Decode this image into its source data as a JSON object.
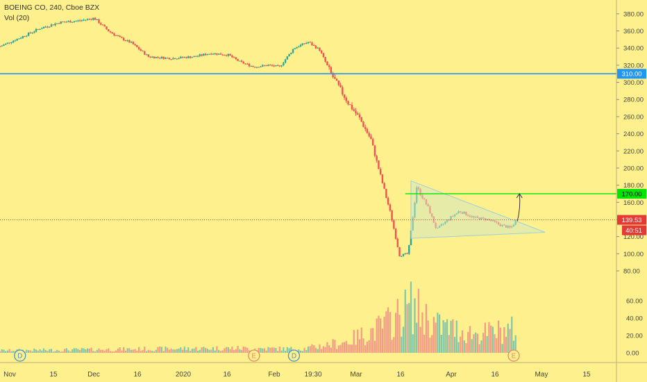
{
  "legend": {
    "symbol_line": "BOEING CO, 240, Cboe BZX",
    "volume_label": "Vol (20)"
  },
  "colors": {
    "background": "#fdf08d",
    "up_candle": "#26a69a",
    "down_candle": "#ef5350",
    "up_volume": "#7fc7a8",
    "down_volume": "#f29b86",
    "support_line": "#2196f3",
    "resistance_line": "#00e600",
    "last_price_line": "#e53935",
    "triangle_fill": "#d6e8bf",
    "triangle_edge": "#9fcfd8",
    "event_marker": "#e8866b",
    "dividend_marker": "#4a90c8",
    "axis_text": "#444444"
  },
  "chart_data": {
    "type": "candlestick",
    "price_axis": {
      "ticks": [
        "380.00",
        "360.00",
        "340.00",
        "320.00",
        "300.00",
        "280.00",
        "260.00",
        "240.00",
        "220.00",
        "200.00",
        "180.00",
        "160.00",
        "140.00",
        "120.00",
        "100.00",
        "80.00"
      ],
      "range": [
        80,
        388
      ]
    },
    "volume_axis": {
      "ticks": [
        "60.00",
        "40.00",
        "20.00",
        "0.00"
      ],
      "range": [
        0,
        80
      ]
    },
    "time_axis": {
      "ticks": [
        "Nov",
        "15",
        "Dec",
        "16",
        "2020",
        "16",
        "Feb",
        "19:30",
        "Mar",
        "16",
        "Apr",
        "16",
        "May",
        "15"
      ],
      "range": [
        "2019-11-01",
        "2020-06-04"
      ]
    },
    "horizontal_lines": [
      {
        "label": "310.00",
        "value": 310
      },
      {
        "label": "170.00",
        "value": 170
      }
    ],
    "last_price": {
      "label": "139.53",
      "value": 139.53
    },
    "countdown": "40:51",
    "triangle_pattern": {
      "points": [
        [
          "2020-03-24",
          185
        ],
        [
          "2020-03-24",
          118
        ],
        [
          "2020-05-10",
          125
        ]
      ]
    },
    "target_arrow": {
      "date": "2020-05-01",
      "from": 138,
      "to": 170
    },
    "event_markers": [
      {
        "label": "D",
        "date": "2019-11-08",
        "kind": "dividend"
      },
      {
        "label": "E",
        "date": "2020-01-29",
        "kind": "earnings"
      },
      {
        "label": "D",
        "date": "2020-02-12",
        "kind": "dividend"
      },
      {
        "label": "E",
        "date": "2020-04-29",
        "kind": "earnings"
      }
    ],
    "price_path": [
      [
        "2019-11-01",
        342
      ],
      [
        "2019-11-08",
        352
      ],
      [
        "2019-11-15",
        363
      ],
      [
        "2019-11-22",
        370
      ],
      [
        "2019-11-29",
        372
      ],
      [
        "2019-12-04",
        375
      ],
      [
        "2019-12-09",
        360
      ],
      [
        "2019-12-13",
        352
      ],
      [
        "2019-12-17",
        346
      ],
      [
        "2019-12-23",
        330
      ],
      [
        "2019-12-31",
        328
      ],
      [
        "2020-01-08",
        330
      ],
      [
        "2020-01-14",
        334
      ],
      [
        "2020-01-20",
        332
      ],
      [
        "2020-01-24",
        324
      ],
      [
        "2020-01-29",
        318
      ],
      [
        "2020-02-03",
        320
      ],
      [
        "2020-02-07",
        318
      ],
      [
        "2020-02-12",
        340
      ],
      [
        "2020-02-17",
        347
      ],
      [
        "2020-02-21",
        338
      ],
      [
        "2020-02-25",
        310
      ],
      [
        "2020-03-02",
        276
      ],
      [
        "2020-03-06",
        258
      ],
      [
        "2020-03-10",
        233
      ],
      [
        "2020-03-13",
        195
      ],
      [
        "2020-03-17",
        145
      ],
      [
        "2020-03-20",
        98
      ],
      [
        "2020-03-23",
        100
      ],
      [
        "2020-03-26",
        178
      ],
      [
        "2020-03-30",
        154
      ],
      [
        "2020-04-02",
        128
      ],
      [
        "2020-04-06",
        140
      ],
      [
        "2020-04-10",
        150
      ],
      [
        "2020-04-15",
        142
      ],
      [
        "2020-04-20",
        140
      ],
      [
        "2020-04-24",
        134
      ],
      [
        "2020-04-28",
        130
      ],
      [
        "2020-04-30",
        139.5
      ]
    ],
    "volume_profile": [
      [
        "2019-11-01",
        3
      ],
      [
        "2020-01-20",
        6
      ],
      [
        "2020-02-15",
        5
      ],
      [
        "2020-03-01",
        14
      ],
      [
        "2020-03-12",
        30
      ],
      [
        "2020-03-18",
        42
      ],
      [
        "2020-03-24",
        60
      ],
      [
        "2020-04-02",
        35
      ],
      [
        "2020-04-16",
        24
      ],
      [
        "2020-04-30",
        30
      ]
    ]
  }
}
